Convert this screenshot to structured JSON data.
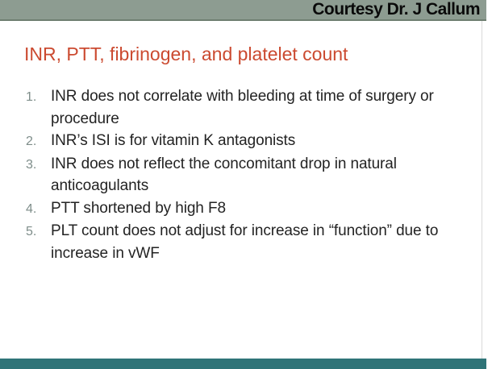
{
  "header": {
    "credit": "Courtesy Dr. J Callum"
  },
  "slide": {
    "title": "INR, PTT, fibrinogen, and platelet count",
    "list": [
      {
        "number": "1.",
        "text": "INR does not correlate with bleeding at time of surgery or procedure"
      },
      {
        "number": "2.",
        "text": "INR’s ISI is for vitamin K antagonists"
      },
      {
        "number": "3.",
        "text": "INR does not reflect the concomitant drop in natural anticoagulants"
      },
      {
        "number": "4.",
        "text": "PTT shortened by high F8"
      },
      {
        "number": "5.",
        "text": "PLT count does not adjust for increase in “function” due to increase in vWF"
      }
    ]
  },
  "colors": {
    "credit_bar_background": "#8d9c91",
    "credit_bar_border": "#6e7e71",
    "credit_text": "#0a0a0a",
    "title_accent": "#cb4a30",
    "list_number": "#7e8d8a",
    "body_text": "#232323",
    "footer_bar": "#2f7478",
    "right_edge_line": "#d9d9d9",
    "slide_background": "#ffffff"
  }
}
